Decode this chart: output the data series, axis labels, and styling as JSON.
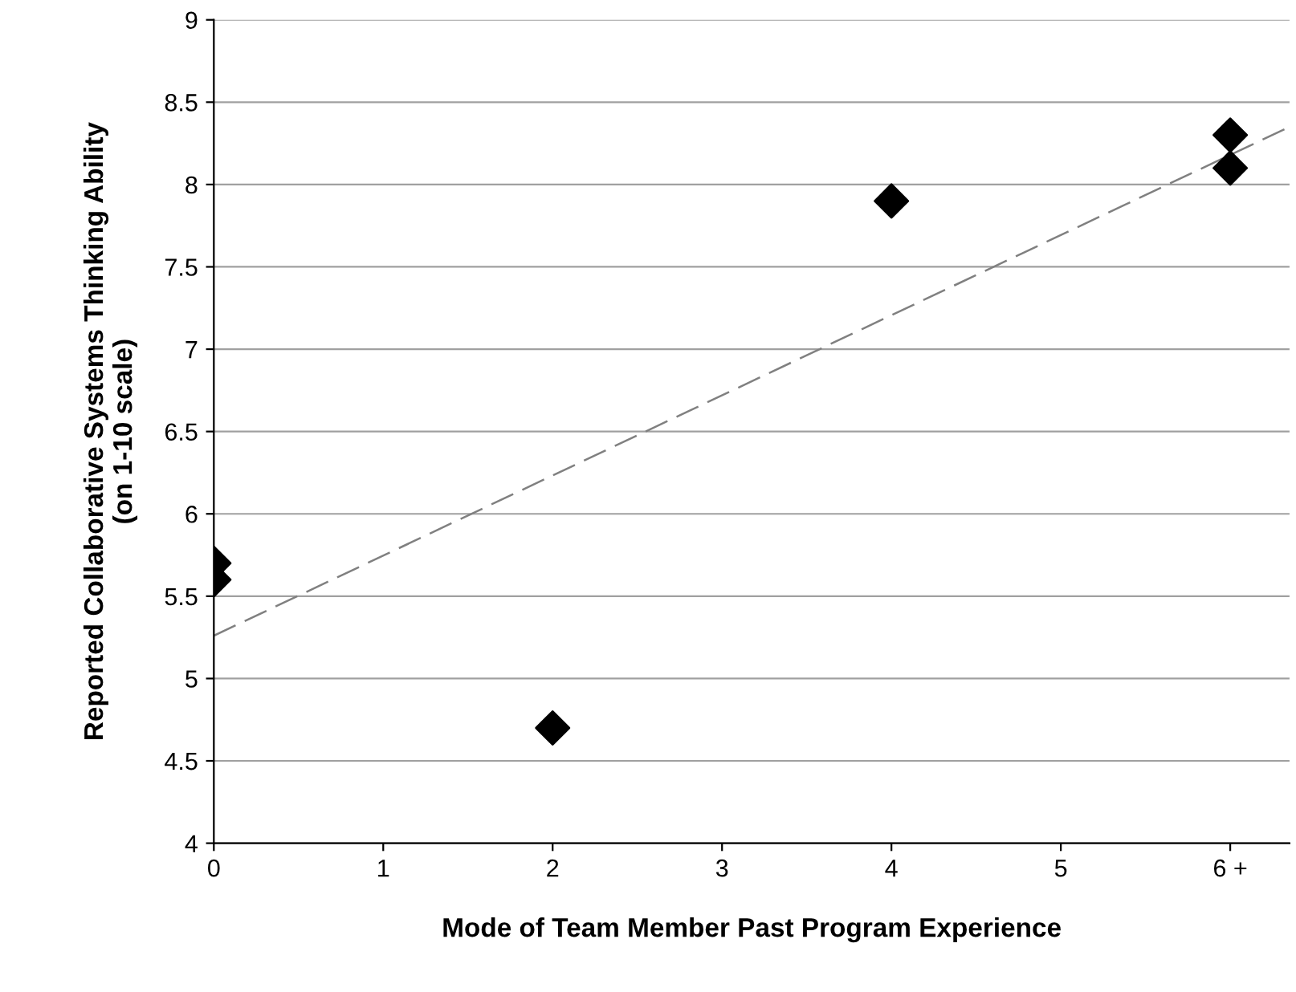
{
  "chart_data": {
    "type": "scatter",
    "xlabel": "Mode of Team Member Past Program Experience",
    "ylabel": "Reported Collaborative Systems Thinking Ability\n(on 1-10 scale)",
    "series": [
      {
        "color": "#000000",
        "marker": "diamond",
        "x": [
          0,
          0,
          2,
          4,
          6,
          6
        ],
        "values": [
          5.7,
          5.6,
          4.7,
          7.9,
          8.3,
          8.1
        ]
      },
      {
        "type": "line",
        "color": "#808080",
        "line_style": "dashed",
        "marker": "none",
        "x": [
          0,
          6.35
        ],
        "values": [
          5.26,
          8.35
        ]
      }
    ],
    "xlim": [
      0,
      6.35
    ],
    "xticks": [
      0,
      1,
      2,
      3,
      4,
      5,
      {
        "value": 6,
        "label": "6 +"
      }
    ],
    "ylim": [
      4,
      9
    ],
    "yticks": [
      4,
      4.5,
      5,
      5.5,
      6,
      6.5,
      7,
      7.5,
      8,
      8.5,
      9
    ],
    "grid": "y"
  }
}
